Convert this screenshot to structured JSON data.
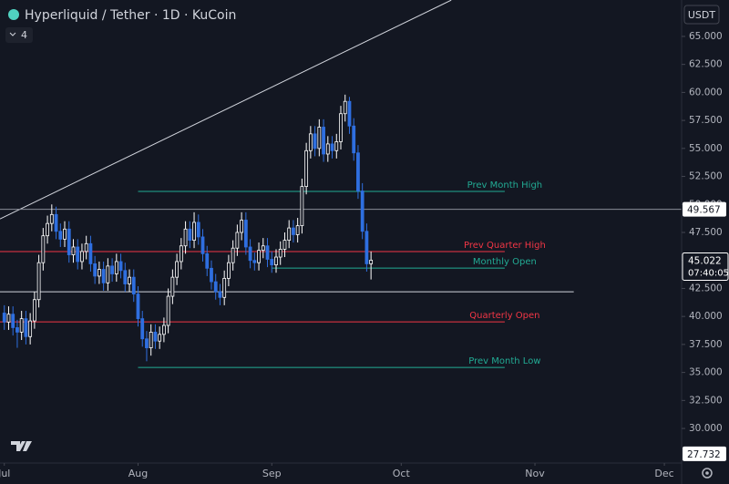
{
  "chart_data": {
    "type": "candlestick",
    "title": "Hyperliquid / Tether · 1D · KuCoin",
    "indicator_count": "4",
    "currency": "USDT",
    "countdown": "07:40:05",
    "x": [
      0,
      1,
      2,
      3,
      4,
      5,
      6,
      7,
      8,
      9,
      10,
      11,
      12,
      13,
      14,
      15,
      16,
      17,
      18,
      19,
      20,
      21,
      22,
      23,
      24,
      25,
      26,
      27,
      28,
      29,
      30,
      31,
      32,
      33,
      34,
      35,
      36,
      37,
      38,
      39,
      40,
      41,
      42,
      43,
      44,
      45,
      46,
      47,
      48,
      49,
      50,
      51,
      52,
      53,
      54,
      55,
      56,
      57,
      58,
      59,
      60,
      61,
      62,
      63,
      64,
      65,
      66,
      67,
      68,
      69,
      70,
      71,
      72,
      73,
      74,
      75,
      76,
      77,
      78,
      79,
      80,
      81,
      82,
      83,
      84,
      85
    ],
    "open": [
      40.3,
      39.5,
      40.2,
      39.0,
      38.6,
      39.8,
      38.2,
      39.6,
      41.5,
      44.8,
      47.2,
      48.3,
      49.1,
      47.6,
      46.9,
      47.8,
      45.5,
      46.2,
      44.9,
      45.8,
      46.5,
      44.7,
      43.6,
      44.2,
      43.0,
      44.5,
      43.8,
      44.9,
      44.1,
      42.9,
      43.5,
      42.0,
      39.8,
      38.0,
      37.2,
      38.6,
      37.8,
      38.4,
      39.2,
      41.8,
      43.5,
      44.9,
      46.3,
      47.8,
      46.8,
      48.4,
      47.1,
      45.6,
      44.3,
      43.1,
      42.2,
      41.7,
      43.4,
      44.8,
      46.1,
      47.5,
      48.6,
      46.2,
      45.0,
      44.8,
      45.9,
      46.3,
      45.1,
      44.6,
      45.3,
      46.0,
      46.8,
      47.9,
      47.3,
      48.1,
      51.6,
      54.8,
      56.3,
      55.0,
      56.9,
      54.5,
      55.4,
      54.8,
      55.6,
      58.1,
      59.2,
      57.0,
      54.6,
      51.2,
      47.6,
      44.7
    ],
    "high": [
      41.0,
      40.9,
      40.9,
      39.7,
      40.5,
      40.5,
      40.3,
      42.2,
      45.5,
      47.9,
      49.0,
      50.0,
      49.8,
      48.3,
      48.5,
      48.5,
      46.9,
      46.9,
      46.5,
      47.2,
      47.2,
      45.4,
      44.9,
      44.9,
      45.2,
      45.2,
      45.6,
      45.6,
      44.8,
      44.2,
      44.2,
      42.7,
      40.5,
      38.7,
      39.3,
      39.3,
      39.1,
      39.9,
      42.5,
      44.2,
      45.6,
      47.0,
      48.5,
      48.5,
      49.3,
      49.1,
      47.8,
      46.3,
      45.0,
      43.8,
      42.9,
      44.1,
      45.5,
      46.8,
      48.2,
      49.3,
      49.3,
      46.9,
      45.7,
      46.6,
      47.0,
      47.0,
      45.8,
      46.0,
      46.7,
      47.5,
      48.6,
      48.6,
      48.8,
      52.3,
      55.5,
      57.0,
      57.0,
      57.6,
      57.6,
      56.1,
      56.1,
      56.3,
      58.8,
      59.8,
      59.6,
      57.7,
      55.3,
      51.9,
      48.3,
      45.8
    ],
    "low": [
      38.8,
      38.8,
      38.3,
      37.2,
      37.9,
      37.5,
      37.5,
      38.9,
      40.8,
      44.1,
      46.5,
      47.6,
      46.9,
      46.2,
      46.2,
      44.8,
      44.8,
      44.2,
      44.2,
      45.1,
      44.0,
      42.9,
      42.9,
      42.3,
      42.3,
      43.1,
      43.1,
      43.4,
      42.2,
      42.2,
      41.3,
      39.1,
      37.3,
      36.0,
      36.5,
      37.1,
      37.1,
      37.7,
      38.5,
      41.1,
      42.8,
      44.2,
      45.6,
      46.1,
      46.1,
      46.4,
      44.9,
      43.6,
      42.4,
      41.5,
      41.0,
      41.0,
      42.7,
      44.1,
      45.4,
      46.8,
      45.5,
      44.3,
      44.1,
      44.1,
      45.2,
      44.4,
      43.9,
      43.9,
      44.6,
      45.3,
      46.1,
      46.6,
      46.6,
      47.4,
      50.9,
      54.1,
      54.3,
      54.3,
      53.8,
      53.8,
      54.1,
      54.1,
      54.9,
      57.4,
      56.3,
      53.9,
      50.5,
      46.9,
      44.0,
      43.3
    ],
    "close": [
      39.5,
      40.2,
      39.0,
      38.6,
      39.8,
      38.2,
      39.6,
      41.5,
      44.8,
      47.2,
      48.3,
      49.1,
      47.6,
      46.9,
      47.8,
      45.5,
      46.2,
      44.9,
      45.8,
      46.5,
      44.7,
      43.6,
      44.2,
      43.0,
      44.5,
      43.8,
      44.9,
      44.1,
      42.9,
      43.5,
      42.0,
      39.8,
      38.0,
      37.2,
      38.6,
      37.8,
      38.4,
      39.2,
      41.8,
      43.5,
      44.9,
      46.3,
      47.8,
      46.8,
      48.4,
      47.1,
      45.6,
      44.3,
      43.1,
      42.2,
      41.7,
      43.4,
      44.8,
      46.1,
      47.5,
      48.6,
      46.2,
      45.0,
      44.8,
      45.9,
      46.3,
      45.1,
      44.6,
      45.3,
      46.0,
      46.8,
      47.9,
      47.3,
      48.1,
      51.6,
      54.8,
      56.3,
      55.0,
      56.9,
      54.5,
      55.4,
      54.8,
      55.6,
      58.1,
      59.2,
      57.0,
      54.6,
      51.2,
      47.6,
      44.7,
      45.022
    ],
    "up_color": "#ffffff",
    "down_color": "#2f6fe0",
    "xlim": [
      -1,
      157
    ],
    "ylim": [
      26.75,
      68.25
    ],
    "xticks": [
      {
        "value": 0,
        "label": "Jul"
      },
      {
        "value": 31,
        "label": "Aug"
      },
      {
        "value": 62,
        "label": "Sep"
      },
      {
        "value": 92,
        "label": "Oct"
      },
      {
        "value": 123,
        "label": "Nov"
      },
      {
        "value": 153,
        "label": "Dec"
      }
    ],
    "yticks": [
      {
        "value": 30,
        "label": "30.000"
      },
      {
        "value": 32.5,
        "label": "32.500"
      },
      {
        "value": 35,
        "label": "35.000"
      },
      {
        "value": 37.5,
        "label": "37.500"
      },
      {
        "value": 40,
        "label": "40.000"
      },
      {
        "value": 42.5,
        "label": "42.500"
      },
      {
        "value": 45,
        "label": "45.000"
      },
      {
        "value": 47.5,
        "label": "47.500"
      },
      {
        "value": 50,
        "label": "50.000"
      },
      {
        "value": 52.5,
        "label": "52.500"
      },
      {
        "value": 55,
        "label": "55.000"
      },
      {
        "value": 57.5,
        "label": "57.500"
      },
      {
        "value": 60,
        "label": "60.000"
      },
      {
        "value": 62.5,
        "label": "62.500"
      },
      {
        "value": 65,
        "label": "65.000"
      }
    ],
    "levels": [
      {
        "name": "Prev Month High",
        "price": 51.16,
        "from": 31,
        "to": 116,
        "color": "#22ab94"
      },
      {
        "name": "Prev Quarter High",
        "price": 45.79,
        "from": -1,
        "to": 116,
        "color": "#f23645"
      },
      {
        "name": "Monthly Open",
        "price": 44.32,
        "from": 62,
        "to": 116,
        "color": "#22ab94"
      },
      {
        "name": "Quarterly Open",
        "price": 39.52,
        "from": -1,
        "to": 116,
        "color": "#f23645"
      },
      {
        "name": "Prev Month Low",
        "price": 35.45,
        "from": 31,
        "to": 116,
        "color": "#22ab94"
      }
    ],
    "hlines": [
      {
        "price": 49.567,
        "from": -1,
        "to": 157,
        "color": "#8a8e99"
      },
      {
        "price": 42.2,
        "from": -1,
        "to": 132,
        "color": "#d1d4dc"
      }
    ],
    "trendline": {
      "x": [
        -1,
        103.6
      ],
      "y": [
        48.71,
        68.24
      ],
      "color": "#d1d4dc"
    },
    "price_markers": [
      49.567,
      27.732
    ]
  }
}
